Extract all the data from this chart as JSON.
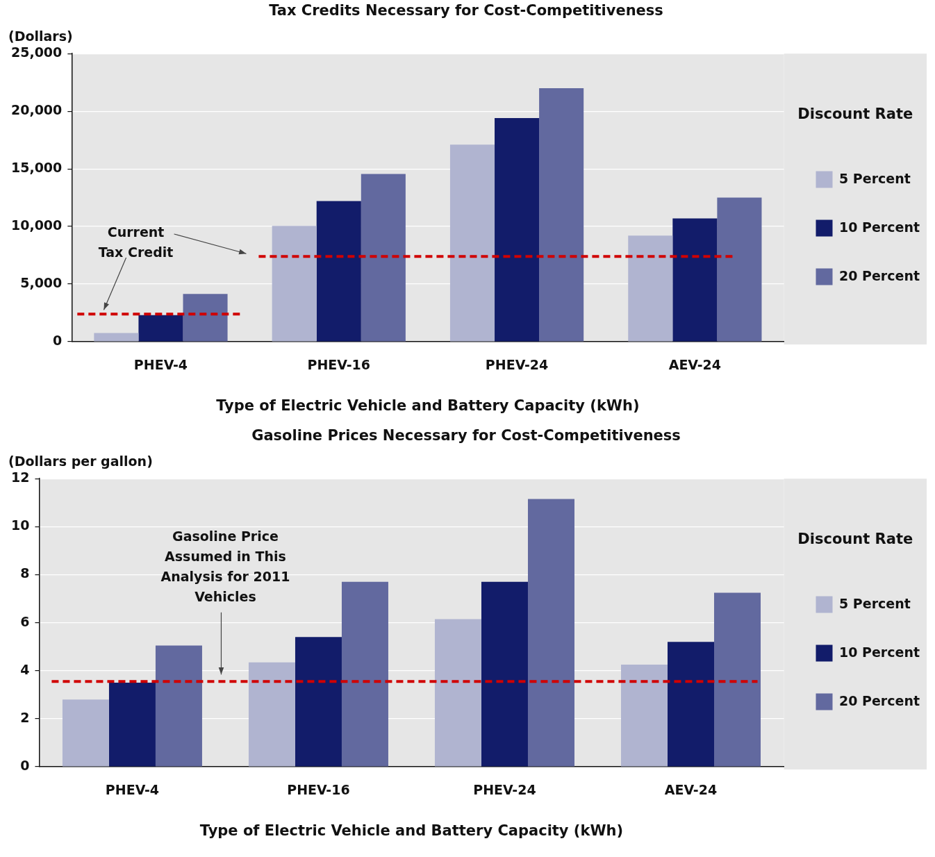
{
  "chart_data": [
    {
      "type": "bar",
      "title": "Tax Credits Necessary for Cost-Competitiveness",
      "ylabel": "(Dollars)",
      "xlabel": "Type of Electric Vehicle and Battery Capacity (kWh)",
      "legend_title": "Discount Rate",
      "categories": [
        "PHEV-4",
        "PHEV-16",
        "PHEV-24",
        "AEV-24"
      ],
      "series": [
        {
          "name": "5 Percent",
          "color": "#b0b4d0",
          "values": [
            750,
            10050,
            17100,
            9200
          ]
        },
        {
          "name": "10 Percent",
          "color": "#121c6a",
          "values": [
            2300,
            12200,
            19400,
            10700
          ]
        },
        {
          "name": "20 Percent",
          "color": "#62699f",
          "values": [
            4150,
            14550,
            22000,
            12500
          ]
        }
      ],
      "ylim": [
        0,
        25000
      ],
      "yticks": [
        0,
        {
          "value": 5000,
          "label": "5,000"
        },
        {
          "value": 10000,
          "label": "10,000"
        },
        {
          "value": 15000,
          "label": "15,000"
        },
        {
          "value": 20000,
          "label": "20,000"
        },
        {
          "value": 25000,
          "label": "25,000"
        }
      ],
      "ref_lines": [
        {
          "axis": "y",
          "value": 2400,
          "color": "#d00000",
          "line_style": "dashed"
        },
        {
          "axis": "y",
          "value": 7400,
          "color": "#d00000",
          "line_style": "dashed"
        }
      ],
      "annotations": [
        "Current Tax Credit"
      ],
      "grid": "y",
      "legend": "right"
    },
    {
      "type": "bar",
      "title": "Gasoline Prices Necessary for Cost-Competitiveness",
      "ylabel": "(Dollars per gallon)",
      "xlabel": "Type of Electric Vehicle and Battery Capacity (kWh)",
      "legend_title": "Discount Rate",
      "categories": [
        "PHEV-4",
        "PHEV-16",
        "PHEV-24",
        "AEV-24"
      ],
      "series": [
        {
          "name": "5 Percent",
          "color": "#b0b4d0",
          "values": [
            2.8,
            4.35,
            6.15,
            4.25
          ]
        },
        {
          "name": "10 Percent",
          "color": "#121c6a",
          "values": [
            3.5,
            5.4,
            7.7,
            5.2
          ]
        },
        {
          "name": "20 Percent",
          "color": "#62699f",
          "values": [
            5.05,
            7.7,
            11.15,
            7.25
          ]
        }
      ],
      "ylim": [
        0,
        12
      ],
      "yticks": [
        0,
        2,
        4,
        6,
        8,
        10,
        12
      ],
      "ref_lines": [
        {
          "axis": "y",
          "value": 3.55,
          "color": "#d00000",
          "line_style": "dashed"
        }
      ],
      "annotations": [
        "Gasoline Price Assumed in This Analysis for 2011 Vehicles"
      ],
      "grid": "y",
      "legend": "right"
    }
  ]
}
